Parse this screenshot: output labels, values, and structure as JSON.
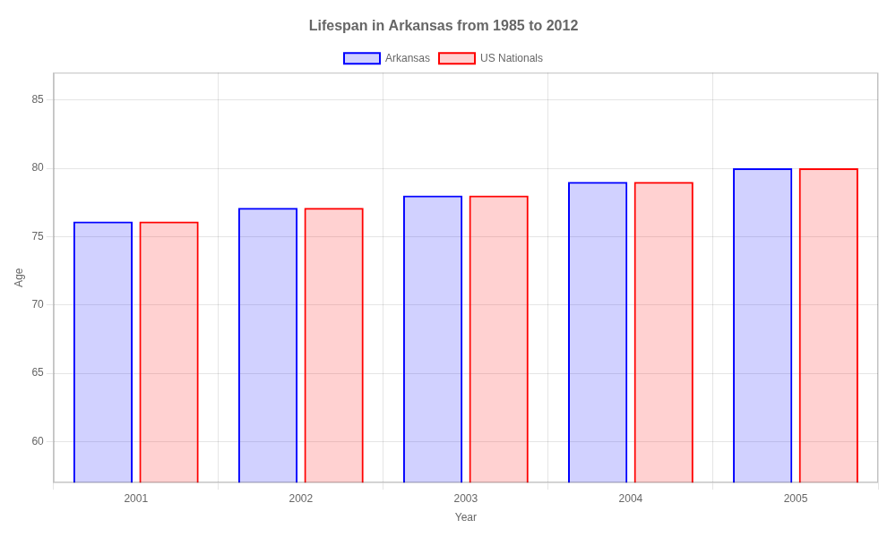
{
  "chart_data": {
    "type": "bar",
    "title": "Lifespan in Arkansas from 1985 to 2012",
    "x_label": "Year",
    "y_label": "Age",
    "categories": [
      "2001",
      "2002",
      "2003",
      "2004",
      "2005"
    ],
    "series": [
      {
        "name": "Arkansas",
        "color": "#0000ff",
        "values": [
          76.1,
          77.1,
          78.0,
          79.0,
          80.0
        ]
      },
      {
        "name": "US Nationals",
        "color": "#ff0000",
        "values": [
          76.1,
          77.1,
          78.0,
          79.0,
          80.0
        ]
      }
    ],
    "ylim": [
      57,
      87
    ],
    "yticks": [
      60,
      65,
      70,
      75,
      80,
      85
    ],
    "grid": true,
    "legend": "top"
  }
}
